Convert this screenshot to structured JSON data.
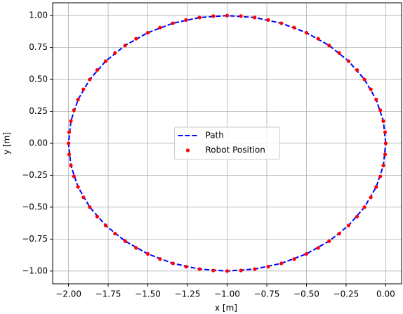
{
  "chart_data": {
    "type": "line",
    "xlabel": "x [m]",
    "ylabel": "y [m]",
    "xlim": [
      -2.1,
      0.1
    ],
    "ylim": [
      -1.1,
      1.1
    ],
    "xticks": [
      {
        "value": -2,
        "label": "−2.00"
      },
      {
        "value": -1.75,
        "label": "−1.75"
      },
      {
        "value": -1.5,
        "label": "−1.50"
      },
      {
        "value": -1.25,
        "label": "−1.25"
      },
      {
        "value": -1,
        "label": "−1.00"
      },
      {
        "value": -0.75,
        "label": "−0.75"
      },
      {
        "value": -0.5,
        "label": "−0.50"
      },
      {
        "value": -0.25,
        "label": "−0.25"
      },
      {
        "value": 0,
        "label": "0.00"
      }
    ],
    "yticks": [
      {
        "value": -1,
        "label": "−1.00"
      },
      {
        "value": -0.75,
        "label": "−0.75"
      },
      {
        "value": -0.5,
        "label": "−0.50"
      },
      {
        "value": -0.25,
        "label": "−0.25"
      },
      {
        "value": 0,
        "label": "0.00"
      },
      {
        "value": 0.25,
        "label": "0.25"
      },
      {
        "value": 0.5,
        "label": "0.50"
      },
      {
        "value": 0.75,
        "label": "0.75"
      },
      {
        "value": 1,
        "label": "1.00"
      }
    ],
    "grid": true,
    "legend": "center",
    "series": [
      {
        "name": "Path",
        "color": "#0000ff",
        "style": "dashed",
        "x": [
          0,
          -0.015,
          -0.06,
          -0.134,
          -0.234,
          -0.357,
          -0.5,
          -0.658,
          -0.826,
          -1,
          -1.174,
          -1.342,
          -1.5,
          -1.643,
          -1.766,
          -1.866,
          -1.94,
          -1.985,
          -2,
          -1.985,
          -1.94,
          -1.866,
          -1.766,
          -1.643,
          -1.5,
          -1.342,
          -1.174,
          -1,
          -0.826,
          -0.658,
          -0.5,
          -0.357,
          -0.234,
          -0.134,
          -0.06,
          -0.015,
          0
        ],
        "values": [
          0,
          0.174,
          0.342,
          0.5,
          0.643,
          0.766,
          0.866,
          0.94,
          0.985,
          1,
          0.985,
          0.94,
          0.866,
          0.766,
          0.643,
          0.5,
          0.342,
          0.174,
          0,
          -0.174,
          -0.342,
          -0.5,
          -0.643,
          -0.766,
          -0.866,
          -0.94,
          -0.985,
          -1,
          -0.985,
          -0.94,
          -0.866,
          -0.766,
          -0.643,
          -0.5,
          -0.342,
          -0.174,
          0
        ]
      },
      {
        "name": "Robot Position",
        "color": "#ff0000",
        "style": "markers",
        "x": [
          0,
          -0.004,
          -0.015,
          -0.034,
          -0.06,
          -0.094,
          -0.134,
          -0.181,
          -0.234,
          -0.293,
          -0.357,
          -0.426,
          -0.5,
          -0.577,
          -0.658,
          -0.741,
          -0.826,
          -0.913,
          -1,
          -1.087,
          -1.174,
          -1.259,
          -1.342,
          -1.423,
          -1.5,
          -1.574,
          -1.643,
          -1.707,
          -1.766,
          -1.819,
          -1.866,
          -1.906,
          -1.94,
          -1.966,
          -1.985,
          -1.996,
          -2,
          -1.996,
          -1.985,
          -1.966,
          -1.94,
          -1.906,
          -1.866,
          -1.819,
          -1.766,
          -1.707,
          -1.643,
          -1.574,
          -1.5,
          -1.423,
          -1.342,
          -1.259,
          -1.174,
          -1.087,
          -1,
          -0.913,
          -0.826,
          -0.741,
          -0.658,
          -0.577,
          -0.5,
          -0.426,
          -0.357,
          -0.293,
          -0.234,
          -0.181,
          -0.134,
          -0.094,
          -0.06,
          -0.034,
          -0.015,
          -0.004
        ],
        "values": [
          0,
          0.087,
          0.174,
          0.259,
          0.342,
          0.423,
          0.5,
          0.574,
          0.643,
          0.707,
          0.766,
          0.819,
          0.866,
          0.906,
          0.94,
          0.966,
          0.985,
          0.996,
          1,
          0.996,
          0.985,
          0.966,
          0.94,
          0.906,
          0.866,
          0.819,
          0.766,
          0.707,
          0.643,
          0.574,
          0.5,
          0.423,
          0.342,
          0.259,
          0.174,
          0.087,
          0,
          -0.087,
          -0.174,
          -0.259,
          -0.342,
          -0.423,
          -0.5,
          -0.574,
          -0.643,
          -0.707,
          -0.766,
          -0.819,
          -0.866,
          -0.906,
          -0.94,
          -0.966,
          -0.985,
          -0.996,
          -1,
          -0.996,
          -0.985,
          -0.966,
          -0.94,
          -0.906,
          -0.866,
          -0.819,
          -0.766,
          -0.707,
          -0.643,
          -0.574,
          -0.5,
          -0.423,
          -0.342,
          -0.259,
          -0.174,
          -0.087
        ]
      }
    ]
  }
}
